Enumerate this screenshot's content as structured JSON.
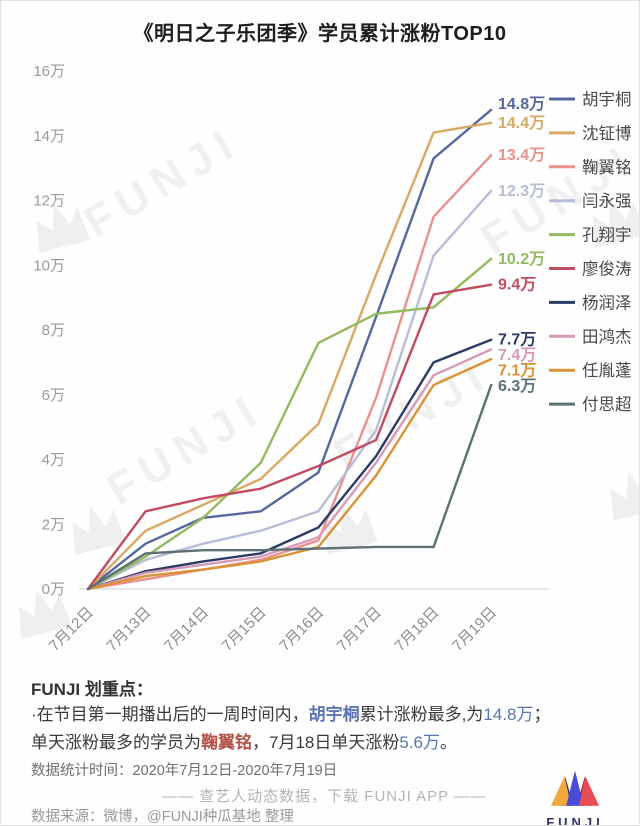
{
  "title": "《明日之子乐团季》学员累计涨粉TOP10",
  "watermark": {
    "text": "FUNJI"
  },
  "chart_data": {
    "type": "line",
    "x": [
      "7月12日",
      "7月13日",
      "7月14日",
      "7月15日",
      "7月16日",
      "7月17日",
      "7月18日",
      "7月19日"
    ],
    "unit": "万",
    "ylim": [
      0,
      16
    ],
    "y_ticks": [
      {
        "v": 0,
        "label": "0万"
      },
      {
        "v": 2,
        "label": "2万"
      },
      {
        "v": 4,
        "label": "4万"
      },
      {
        "v": 6,
        "label": "6万"
      },
      {
        "v": 8,
        "label": "8万"
      },
      {
        "v": 10,
        "label": "10万"
      },
      {
        "v": 12,
        "label": "12万"
      },
      {
        "v": 14,
        "label": "14万"
      },
      {
        "v": 16,
        "label": "16万"
      }
    ],
    "grid": false,
    "legend_position": "right",
    "series": [
      {
        "name": "胡宇桐",
        "color": "#56689f",
        "end_label": "14.8万",
        "values": [
          0,
          1.4,
          2.2,
          2.4,
          3.6,
          8.4,
          13.3,
          14.8
        ]
      },
      {
        "name": "沈钲博",
        "color": "#d8a963",
        "end_label": "14.4万",
        "values": [
          0,
          1.8,
          2.6,
          3.4,
          5.1,
          9.7,
          14.1,
          14.4
        ]
      },
      {
        "name": "鞠翼铭",
        "color": "#e9928b",
        "end_label": "13.4万",
        "values": [
          0,
          0.3,
          0.6,
          0.9,
          1.5,
          5.9,
          11.5,
          13.4
        ]
      },
      {
        "name": "闫永强",
        "color": "#b7bdd8",
        "end_label": "12.3万",
        "values": [
          0,
          0.9,
          1.4,
          1.8,
          2.4,
          4.9,
          10.3,
          12.3
        ]
      },
      {
        "name": "孔翔宇",
        "color": "#93ba5e",
        "end_label": "10.2万",
        "values": [
          0,
          1.0,
          2.2,
          3.9,
          7.6,
          8.5,
          8.7,
          10.2
        ]
      },
      {
        "name": "廖俊涛",
        "color": "#c24b61",
        "end_label": "9.4万",
        "values": [
          0,
          2.4,
          2.8,
          3.1,
          3.8,
          4.6,
          9.1,
          9.4
        ]
      },
      {
        "name": "杨润泽",
        "color": "#2d3a66",
        "end_label": "7.7万",
        "values": [
          0,
          0.55,
          0.85,
          1.1,
          1.9,
          4.1,
          7.0,
          7.7
        ]
      },
      {
        "name": "田鸿杰",
        "color": "#d69ab8",
        "end_label": "7.4万",
        "values": [
          0,
          0.5,
          0.75,
          1.0,
          1.6,
          3.9,
          6.6,
          7.4
        ]
      },
      {
        "name": "任胤蓬",
        "color": "#da9334",
        "end_label": "7.1万",
        "values": [
          0,
          0.4,
          0.6,
          0.85,
          1.3,
          3.5,
          6.3,
          7.1
        ]
      },
      {
        "name": "付思超",
        "color": "#5c7173",
        "end_label": "6.3万",
        "values": [
          0,
          1.1,
          1.2,
          1.2,
          1.25,
          1.3,
          1.3,
          6.3
        ]
      }
    ]
  },
  "summary": {
    "heading": "FUNJI 划重点：",
    "line1_pre": "·在节目第一期播出后的一周时间内，",
    "line1_name": "胡宇桐",
    "line1_mid": "累计涨粉最多,为",
    "line1_value": "14.8万",
    "line1_post": "；",
    "line2_pre": "单天涨粉最多的学员为",
    "line2_name": "鞠翼铭",
    "line2_mid": "，7月18日单天涨粉",
    "line2_value": "5.6万",
    "line2_post": "。",
    "stat_period": "数据统计时间：2020年7月12日-2020年7月19日",
    "tagline": "—— 查艺人动态数据，下载 FUNJI APP ——",
    "source": "数据来源：微博，@FUNJI种瓜基地 整理"
  },
  "logo": {
    "text": "FUNJI"
  },
  "colors": {
    "accent_blue": "#5b74b8",
    "accent_red": "#b5524a",
    "axis_line": "#d9d9d9",
    "tick_text": "#9a9a9a",
    "watermark": "#e0e0e0"
  }
}
